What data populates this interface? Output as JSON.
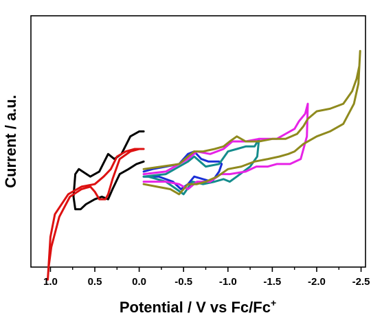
{
  "chart_data": {
    "type": "line",
    "xlabel": "Potential / V vs Fc/Fc",
    "xlabel_superscript": "+",
    "ylabel": "Current / a.u.",
    "xlim": [
      1.22,
      -2.55
    ],
    "ylim": [
      0,
      100
    ],
    "x_reversed": true,
    "y_tick_labels": false,
    "x_ticks": [
      {
        "value": 1.0,
        "label": "1.0"
      },
      {
        "value": 0.5,
        "label": "0.5"
      },
      {
        "value": 0.0,
        "label": "0.0"
      },
      {
        "value": -0.5,
        "label": "-0.5"
      },
      {
        "value": -1.0,
        "label": "-1.0"
      },
      {
        "value": -1.5,
        "label": "-1.5"
      },
      {
        "value": -2.0,
        "label": "-2.0"
      },
      {
        "value": -2.5,
        "label": "-2.5"
      }
    ],
    "grid": false,
    "legend": "none",
    "series": [
      {
        "color": "#000000",
        "x": [
          -0.05,
          0.0,
          0.1,
          0.2,
          0.28,
          0.35,
          0.45,
          0.55,
          0.68,
          0.72,
          0.74,
          0.72,
          0.66,
          0.6,
          0.5,
          0.42,
          0.35,
          0.3,
          0.22,
          0.12,
          0.03,
          -0.05
        ],
        "y": [
          54,
          54,
          52,
          45,
          43,
          45,
          38,
          36,
          39,
          37,
          28,
          23,
          23,
          25,
          27,
          28,
          27,
          31,
          37,
          39,
          41,
          42
        ]
      },
      {
        "color": "#dd1111",
        "x": [
          -0.05,
          0.05,
          0.15,
          0.25,
          0.32,
          0.4,
          0.5,
          0.65,
          0.8,
          0.95,
          1.0,
          1.03,
          1.02,
          0.99,
          0.9,
          0.78,
          0.65,
          0.55,
          0.5,
          0.45,
          0.38,
          0.35,
          0.3,
          0.22,
          0.1,
          0.0,
          -0.05
        ],
        "y": [
          47,
          47,
          46,
          44,
          39,
          36,
          33,
          32,
          29,
          21,
          12,
          -5,
          0,
          8,
          20,
          28,
          31,
          32,
          30,
          27,
          27,
          29,
          35,
          43,
          46,
          47,
          47
        ]
      },
      {
        "color": "#1a2fd6",
        "x": [
          -0.05,
          -0.15,
          -0.3,
          -0.45,
          -0.55,
          -0.62,
          -0.7,
          -0.78,
          -0.85,
          -0.9,
          -0.93,
          -0.9,
          -0.82,
          -0.72,
          -0.62,
          -0.55,
          -0.47,
          -0.38,
          -0.22,
          -0.05
        ],
        "y": [
          38,
          39,
          40,
          41,
          45,
          46,
          43,
          42,
          42,
          42,
          41,
          38,
          34,
          35,
          36,
          33,
          31,
          34,
          36,
          36
        ]
      },
      {
        "color": "#148c8c",
        "x": [
          -0.05,
          -0.3,
          -0.55,
          -0.62,
          -0.75,
          -0.9,
          -1.0,
          -1.1,
          -1.2,
          -1.3,
          -1.35,
          -1.33,
          -1.25,
          -1.1,
          -1.02,
          -0.95,
          -0.85,
          -0.72,
          -0.6,
          -0.5,
          -0.42,
          -0.3,
          -0.1,
          -0.05
        ],
        "y": [
          36,
          37,
          42,
          44,
          40,
          41,
          46,
          47,
          48,
          48,
          51,
          44,
          40,
          36,
          34,
          35,
          34,
          33,
          34,
          29,
          31,
          34,
          36,
          36
        ]
      },
      {
        "color": "#e623e6",
        "x": [
          -0.05,
          -0.3,
          -0.55,
          -0.65,
          -0.8,
          -0.95,
          -1.05,
          -1.2,
          -1.35,
          -1.45,
          -1.55,
          -1.65,
          -1.75,
          -1.8,
          -1.87,
          -1.9,
          -1.89,
          -1.82,
          -1.7,
          -1.55,
          -1.45,
          -1.32,
          -1.2,
          -1.02,
          -0.92,
          -0.8,
          -0.65,
          -0.55,
          -0.45,
          -0.3,
          -0.05
        ],
        "y": [
          37,
          38,
          43,
          46,
          45,
          47,
          50,
          50,
          51,
          51,
          51,
          53,
          55,
          58,
          61,
          65,
          52,
          43,
          41,
          41,
          40,
          40,
          38,
          37,
          37,
          34,
          34,
          31,
          33,
          34,
          34
        ]
      },
      {
        "color": "#8f8a1e",
        "x": [
          -0.05,
          -0.25,
          -0.45,
          -0.55,
          -0.62,
          -0.72,
          -0.85,
          -0.95,
          -1.02,
          -1.1,
          -1.2,
          -1.35,
          -1.5,
          -1.65,
          -1.78,
          -1.85,
          -1.9,
          -2.0,
          -2.15,
          -2.3,
          -2.4,
          -2.45,
          -2.48,
          -2.49,
          -2.47,
          -2.42,
          -2.3,
          -2.15,
          -2.0,
          -1.85,
          -1.75,
          -1.68,
          -1.58,
          -1.45,
          -1.3,
          -1.15,
          -1.0,
          -0.88,
          -0.75,
          -0.65,
          -0.55,
          -0.45,
          -0.35,
          -0.2,
          -0.05
        ],
        "y": [
          39,
          40,
          41,
          44,
          46,
          46,
          47,
          48,
          50,
          52,
          50,
          50,
          51,
          51,
          53,
          56,
          59,
          62,
          63,
          65,
          70,
          75,
          80,
          86,
          73,
          65,
          57,
          54,
          52,
          49,
          46,
          45,
          44,
          43,
          42,
          40,
          39,
          36,
          34,
          33,
          33,
          29,
          31,
          32,
          33
        ]
      }
    ]
  }
}
